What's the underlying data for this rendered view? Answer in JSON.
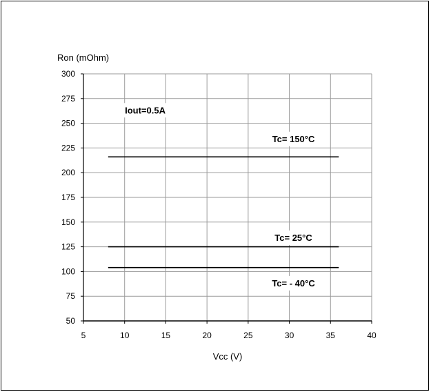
{
  "chart_data": {
    "type": "line",
    "title": "",
    "xlabel": "Vcc (V)",
    "ylabel": "Ron (mOhm)",
    "xlim": [
      5,
      40
    ],
    "ylim": [
      50,
      300
    ],
    "x_ticks": [
      5,
      10,
      15,
      20,
      25,
      30,
      35,
      40
    ],
    "y_ticks": [
      50,
      75,
      100,
      125,
      150,
      175,
      200,
      225,
      250,
      275,
      300
    ],
    "x_tick_labels": [
      "5",
      "10",
      "15",
      "20",
      "25",
      "30",
      "35",
      "40"
    ],
    "y_tick_labels": [
      "50",
      "75",
      "100",
      "125",
      "150",
      "175",
      "200",
      "225",
      "250",
      "275",
      "300"
    ],
    "grid": true,
    "series": [
      {
        "name": "Tc= 150°C",
        "x": [
          8,
          36
        ],
        "y": [
          216,
          216
        ]
      },
      {
        "name": "Tc= 25°C",
        "x": [
          8,
          36
        ],
        "y": [
          125,
          125
        ]
      },
      {
        "name": "Tc= - 40°C",
        "x": [
          8,
          36
        ],
        "y": [
          104,
          104
        ]
      }
    ],
    "annotations": [
      {
        "id": "iout",
        "text": "Iout=0.5A",
        "x": 12.5,
        "y": 260
      },
      {
        "id": "tc150",
        "text": "Tc= 150°C",
        "x": 30.5,
        "y": 231
      },
      {
        "id": "tc25",
        "text": "Tc= 25°C",
        "x": 30.5,
        "y": 131
      },
      {
        "id": "tcm40",
        "text": "Tc= - 40°C",
        "x": 30.5,
        "y": 85
      }
    ],
    "colors": {
      "line": "#000000",
      "grid": "#9a9a9a",
      "axis": "#000000"
    }
  }
}
